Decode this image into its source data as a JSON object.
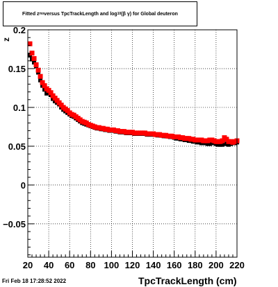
{
  "title": {
    "prefix": "Fitted  z",
    "z_sub": "πο",
    "middle": " versus TpcTrackLength and log",
    "log_sub": "10",
    "suffix": " (β γ) for Global deuteron"
  },
  "footer_date": "Fri Feb 18 17:28:52 2022",
  "chart_data": {
    "type": "scatter",
    "title": "Fitted z versus TpcTrackLength and log10(βγ) for Global deuteron",
    "xlabel": "TpcTrackLength (cm)",
    "ylabel": "z",
    "xlim": [
      20,
      220
    ],
    "ylim": [
      -0.093,
      0.2
    ],
    "x_ticks": [
      20,
      40,
      60,
      80,
      100,
      120,
      140,
      160,
      180,
      200,
      220
    ],
    "x_tick_labels": [
      "20",
      "40",
      "60",
      "80",
      "100",
      "120",
      "140",
      "160",
      "180",
      "200",
      "220"
    ],
    "y_ticks": [
      -0.05,
      0,
      0.05,
      0.1,
      0.15,
      0.2
    ],
    "y_tick_labels": [
      "−0.05",
      "0",
      "0.05",
      "0.1",
      "0.15",
      "0.2"
    ],
    "grid": true,
    "series": [
      {
        "color": "#000000",
        "x": [
          22,
          24,
          26,
          28,
          30,
          32,
          34,
          36,
          38,
          40,
          42,
          44,
          46,
          48,
          50,
          52,
          54,
          56,
          58,
          60,
          62,
          64,
          66,
          68,
          70,
          72,
          74,
          76,
          78,
          80,
          82,
          84,
          86,
          88,
          90,
          92,
          94,
          96,
          98,
          100,
          102,
          104,
          106,
          108,
          110,
          112,
          114,
          116,
          118,
          120,
          122,
          124,
          126,
          128,
          130,
          132,
          134,
          136,
          138,
          140,
          142,
          144,
          146,
          148,
          150,
          152,
          154,
          156,
          158,
          160,
          162,
          164,
          166,
          168,
          170,
          172,
          174,
          176,
          178,
          180,
          182,
          184,
          186,
          188,
          190,
          192,
          194,
          196,
          198,
          200,
          202,
          204,
          206,
          208,
          210,
          212,
          214,
          216,
          218,
          220
        ],
        "y": [
          0.167,
          0.162,
          0.158,
          0.153,
          0.145,
          0.135,
          0.128,
          0.123,
          0.118,
          0.119,
          0.116,
          0.111,
          0.108,
          0.106,
          0.104,
          0.1,
          0.097,
          0.095,
          0.093,
          0.091,
          0.089,
          0.088,
          0.086,
          0.084,
          0.082,
          0.08,
          0.079,
          0.078,
          0.077,
          0.076,
          0.075,
          0.074,
          0.073,
          0.073,
          0.072,
          0.072,
          0.071,
          0.071,
          0.07,
          0.07,
          0.07,
          0.069,
          0.069,
          0.068,
          0.068,
          0.068,
          0.067,
          0.067,
          0.067,
          0.067,
          0.066,
          0.066,
          0.066,
          0.066,
          0.066,
          0.066,
          0.065,
          0.065,
          0.065,
          0.065,
          0.065,
          0.064,
          0.064,
          0.064,
          0.063,
          0.063,
          0.063,
          0.062,
          0.062,
          0.061,
          0.06,
          0.06,
          0.059,
          0.059,
          0.058,
          0.058,
          0.057,
          0.057,
          0.056,
          0.056,
          0.055,
          0.055,
          0.054,
          0.054,
          0.054,
          0.053,
          0.053,
          0.055,
          0.054,
          0.053,
          0.052,
          0.052,
          0.052,
          0.053,
          0.053,
          0.052,
          0.053,
          0.055,
          0.054,
          0.055
        ]
      },
      {
        "color": "#ff0000",
        "x": [
          22,
          24,
          26,
          28,
          30,
          32,
          34,
          36,
          38,
          40,
          42,
          44,
          46,
          48,
          50,
          52,
          54,
          56,
          58,
          60,
          62,
          64,
          66,
          68,
          70,
          72,
          74,
          76,
          78,
          80,
          82,
          84,
          86,
          88,
          90,
          92,
          94,
          96,
          98,
          100,
          102,
          104,
          106,
          108,
          110,
          112,
          114,
          116,
          118,
          120,
          122,
          124,
          126,
          128,
          130,
          132,
          134,
          136,
          138,
          140,
          142,
          144,
          146,
          148,
          150,
          152,
          154,
          156,
          158,
          160,
          162,
          164,
          166,
          168,
          170,
          172,
          174,
          176,
          178,
          180,
          182,
          184,
          186,
          188,
          190,
          192,
          194,
          196,
          198,
          200,
          202,
          204,
          206,
          208,
          210,
          212,
          214,
          216,
          218,
          220
        ],
        "y": [
          0.182,
          0.17,
          0.163,
          0.155,
          0.148,
          0.14,
          0.132,
          0.128,
          0.124,
          0.122,
          0.119,
          0.115,
          0.112,
          0.109,
          0.106,
          0.103,
          0.1,
          0.098,
          0.096,
          0.093,
          0.091,
          0.09,
          0.088,
          0.086,
          0.084,
          0.082,
          0.081,
          0.08,
          0.078,
          0.077,
          0.076,
          0.075,
          0.074,
          0.074,
          0.073,
          0.073,
          0.072,
          0.072,
          0.071,
          0.071,
          0.071,
          0.07,
          0.07,
          0.069,
          0.069,
          0.069,
          0.068,
          0.068,
          0.068,
          0.068,
          0.067,
          0.067,
          0.067,
          0.067,
          0.067,
          0.067,
          0.066,
          0.066,
          0.066,
          0.066,
          0.065,
          0.065,
          0.065,
          0.064,
          0.064,
          0.064,
          0.063,
          0.063,
          0.063,
          0.062,
          0.062,
          0.062,
          0.061,
          0.061,
          0.06,
          0.06,
          0.06,
          0.059,
          0.059,
          0.058,
          0.058,
          0.058,
          0.058,
          0.057,
          0.057,
          0.057,
          0.058,
          0.058,
          0.057,
          0.056,
          0.056,
          0.056,
          0.057,
          0.061,
          0.059,
          0.056,
          0.056,
          0.055,
          0.056,
          0.057
        ]
      }
    ]
  }
}
